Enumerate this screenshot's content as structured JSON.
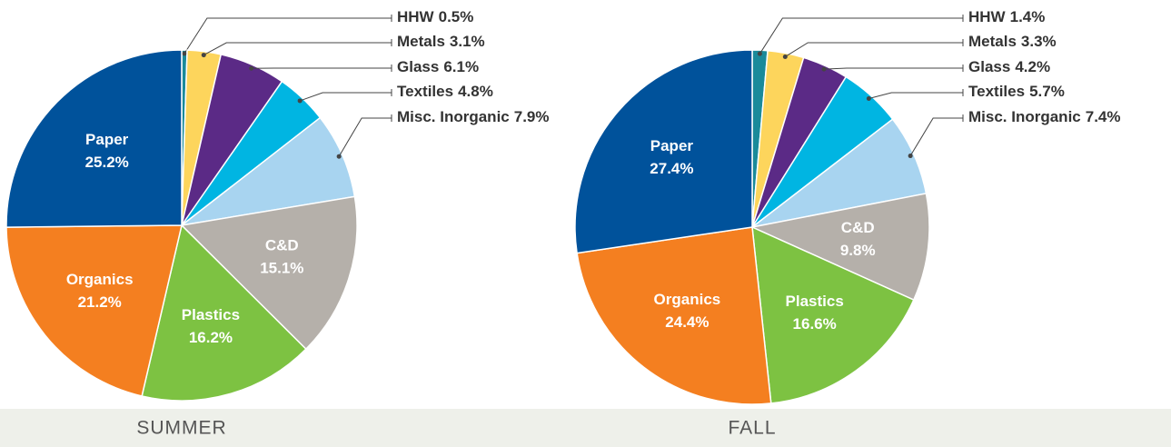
{
  "chart_data": [
    {
      "type": "pie",
      "title": "SUMMER",
      "categories": [
        "HHW",
        "Metals",
        "Glass",
        "Textiles",
        "Misc. Inorganic",
        "C&D",
        "Plastics",
        "Organics",
        "Paper"
      ],
      "values": [
        0.5,
        3.1,
        6.1,
        4.8,
        7.9,
        15.1,
        16.2,
        21.2,
        25.2
      ],
      "value_labels": [
        "0.5%",
        "3.1%",
        "6.1%",
        "4.8%",
        "7.9%",
        "15.1%",
        "16.2%",
        "21.2%",
        "25.2%"
      ],
      "colors": [
        "#1a8a9a",
        "#fdd55c",
        "#5b2a86",
        "#00b5e2",
        "#a8d4f0",
        "#b5b0aa",
        "#7dc242",
        "#f47f20",
        "#00529b"
      ]
    },
    {
      "type": "pie",
      "title": "FALL",
      "categories": [
        "HHW",
        "Metals",
        "Glass",
        "Textiles",
        "Misc. Inorganic",
        "C&D",
        "Plastics",
        "Organics",
        "Paper"
      ],
      "values": [
        1.4,
        3.3,
        4.2,
        5.7,
        7.4,
        9.8,
        16.6,
        24.4,
        27.4
      ],
      "value_labels": [
        "1.4%",
        "3.3%",
        "4.2%",
        "5.7%",
        "7.4%",
        "9.8%",
        "16.6%",
        "24.4%",
        "27.4%"
      ],
      "colors": [
        "#1a8a9a",
        "#fdd55c",
        "#5b2a86",
        "#00b5e2",
        "#a8d4f0",
        "#b5b0aa",
        "#7dc242",
        "#f47f20",
        "#00529b"
      ]
    }
  ]
}
